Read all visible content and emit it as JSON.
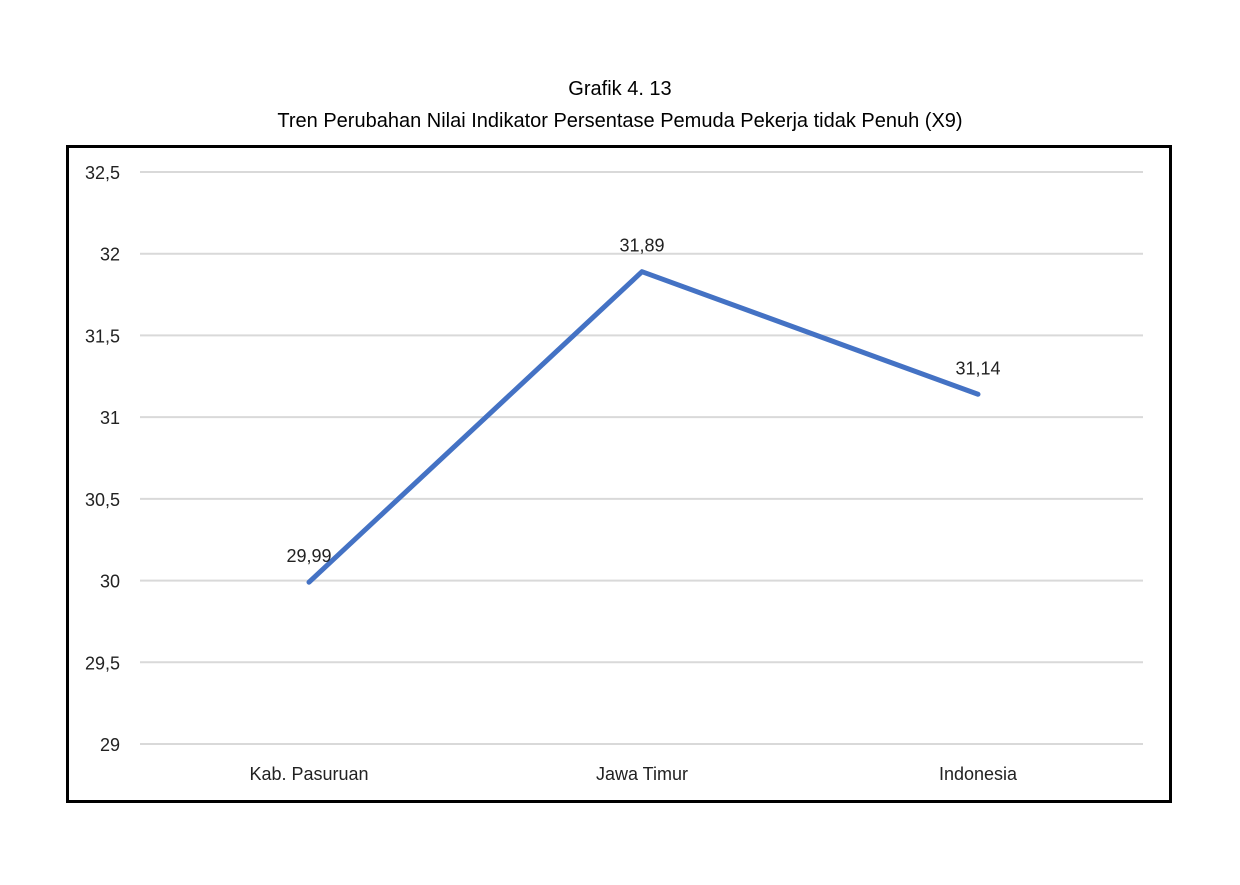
{
  "chart_data": {
    "type": "line",
    "title": "Grafik 4. 13",
    "subtitle": "Tren Perubahan Nilai Indikator Persentase Pemuda Pekerja tidak Penuh  (X9)",
    "categories": [
      "Kab. Pasuruan",
      "Jawa Timur",
      "Indonesia"
    ],
    "values": [
      29.99,
      31.89,
      31.14
    ],
    "data_labels": [
      "29,99",
      "31,89",
      "31,14"
    ],
    "y_ticks": [
      29,
      29.5,
      30,
      30.5,
      31,
      31.5,
      32,
      32.5
    ],
    "y_tick_labels": [
      "29",
      "29,5",
      "30",
      "30,5",
      "31",
      "31,5",
      "32",
      "32,5"
    ],
    "ylim": [
      29,
      32.5
    ],
    "xlabel": "",
    "ylabel": "",
    "grid": true,
    "legend": "none",
    "line_color": "#4472C4"
  }
}
